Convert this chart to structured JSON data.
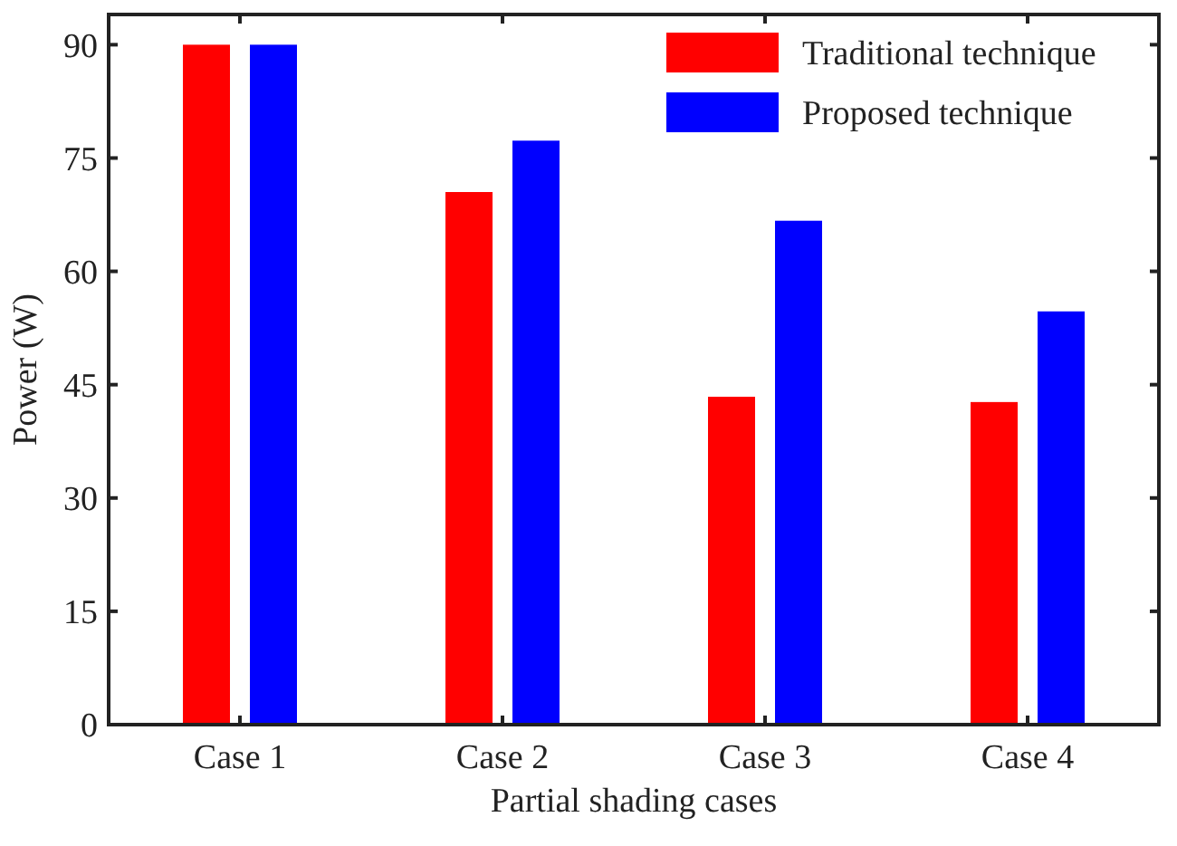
{
  "chart_data": {
    "type": "bar",
    "xlabel": "Partial shading cases",
    "ylabel": "Power (W)",
    "categories": [
      "Case 1",
      "Case 2",
      "Case 3",
      "Case 4"
    ],
    "series": [
      {
        "name": "Traditional technique",
        "color": "#ff0000",
        "values": [
          90,
          70.5,
          43.4,
          42.7
        ]
      },
      {
        "name": "Proposed technique",
        "color": "#0000ff",
        "values": [
          90,
          77.3,
          66.7,
          54.7
        ]
      }
    ],
    "ylim": [
      0,
      94
    ],
    "yticks": [
      0,
      15,
      30,
      45,
      60,
      75,
      90
    ],
    "grid": false,
    "legend": "top right"
  }
}
